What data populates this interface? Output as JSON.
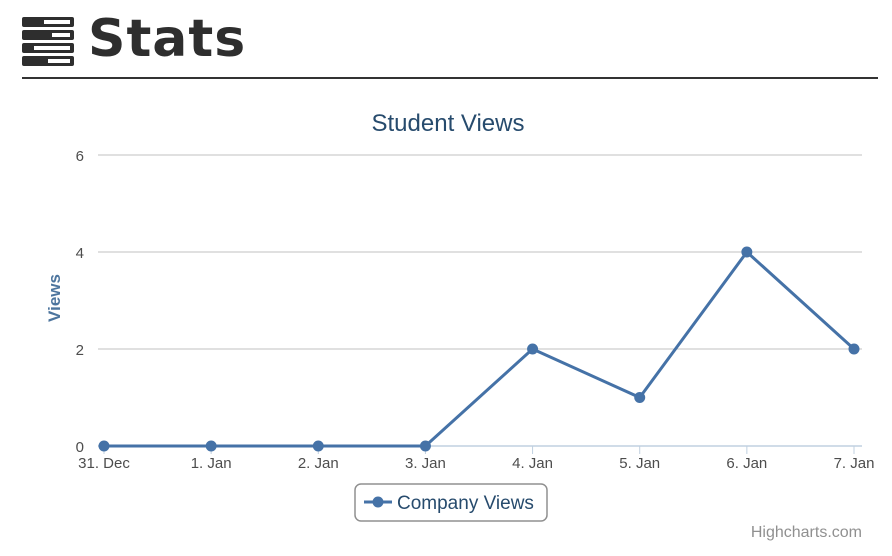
{
  "header": {
    "title": "Stats",
    "icon": "stats-menu-icon"
  },
  "chart_data": {
    "type": "line",
    "title": "Student Views",
    "xlabel": "",
    "ylabel": "Views",
    "categories": [
      "31. Dec",
      "1. Jan",
      "2. Jan",
      "3. Jan",
      "4. Jan",
      "5. Jan",
      "6. Jan",
      "7. Jan"
    ],
    "series": [
      {
        "name": "Company Views",
        "values": [
          0,
          0,
          0,
          0,
          2,
          1,
          4,
          2
        ],
        "color": "#4572a7"
      }
    ],
    "ylim": [
      0,
      6
    ],
    "yticks": [
      0,
      2,
      4,
      6
    ],
    "grid": true,
    "legend_position": "bottom-center",
    "credits": "Highcharts.com"
  }
}
